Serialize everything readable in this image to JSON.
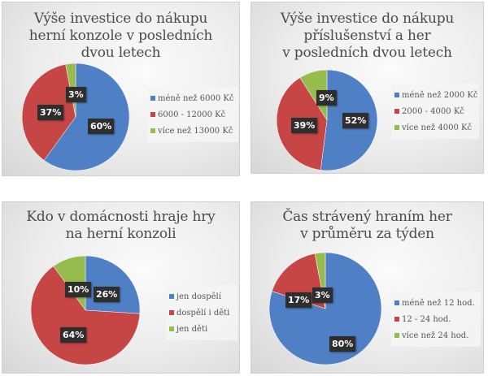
{
  "colors": {
    "blue": "#4f7fc4",
    "red": "#c64545",
    "green": "#97bc4e"
  },
  "chart_data": [
    {
      "type": "pie",
      "title": "Výše investice do nákupu herní konzole v posledních dvou letech",
      "title_lines": [
        "Výše investice do nákupu",
        "herní konzole v posledních",
        "dvou letech"
      ],
      "categories": [
        "méně než 6000 Kč",
        "6000 - 12000 Kč",
        "více než 13000 Kč"
      ],
      "values": [
        60,
        37,
        3
      ],
      "labels": [
        "60%",
        "37%",
        "3%"
      ],
      "legend_position": "right"
    },
    {
      "type": "pie",
      "title": "Výše investice do nákupu příslušenství a her v posledních dvou letech",
      "title_lines": [
        "Výše investice do nákupu",
        "příslušenství a her",
        "v posledních dvou letech"
      ],
      "categories": [
        "méně než 2000 Kč",
        "2000 - 4000 Kč",
        "více než 4000 Kč"
      ],
      "values": [
        52,
        39,
        9
      ],
      "labels": [
        "52%",
        "39%",
        "9%"
      ],
      "legend_position": "right"
    },
    {
      "type": "pie",
      "title": "Kdo v domácnosti hraje hry na herní konzoli",
      "title_lines": [
        "Kdo v domácnosti hraje hry",
        "na herní konzoli"
      ],
      "categories": [
        "jen dospělí",
        "dospělí i děti",
        "jen děti"
      ],
      "values": [
        26,
        64,
        10
      ],
      "labels": [
        "26%",
        "64%",
        "10%"
      ],
      "legend_position": "right"
    },
    {
      "type": "pie",
      "title": "Čas strávený hraním her v průměru za týden",
      "title_lines": [
        "Čas strávený hraním her",
        "v průměru za týden"
      ],
      "categories": [
        "méně než 12 hod.",
        "12 - 24 hod.",
        "více než 24 hod."
      ],
      "values": [
        80,
        17,
        3
      ],
      "labels": [
        "80%",
        "17%",
        "3%"
      ],
      "legend_position": "right"
    }
  ]
}
